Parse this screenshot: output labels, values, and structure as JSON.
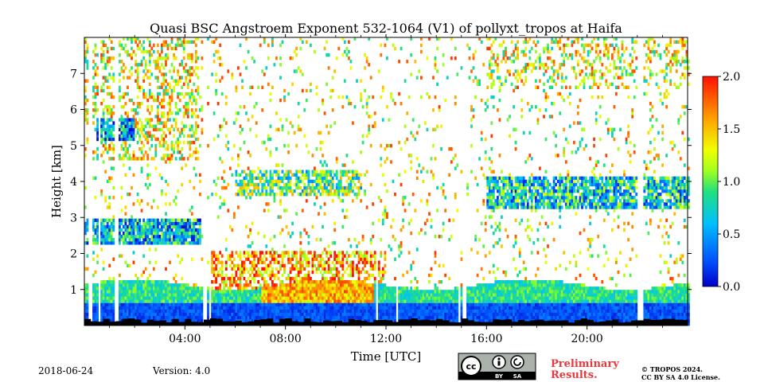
{
  "chart_data": {
    "type": "heatmap",
    "title": "Quasi BSC Angstroem Exponent 532-1064 (V1) of pollyxt_tropos at Haifa",
    "xlabel": "Time [UTC]",
    "ylabel": "Height [km]",
    "xlim_hours": [
      0,
      24
    ],
    "ylim_km": [
      0,
      8
    ],
    "x_ticks": [
      {
        "value": 4,
        "label": "04:00"
      },
      {
        "value": 8,
        "label": "08:00"
      },
      {
        "value": 12,
        "label": "12:00"
      },
      {
        "value": 16,
        "label": "16:00"
      },
      {
        "value": 20,
        "label": "20:00"
      }
    ],
    "y_ticks": [
      {
        "value": 1,
        "label": "1"
      },
      {
        "value": 2,
        "label": "2"
      },
      {
        "value": 3,
        "label": "3"
      },
      {
        "value": 4,
        "label": "4"
      },
      {
        "value": 5,
        "label": "5"
      },
      {
        "value": 6,
        "label": "6"
      },
      {
        "value": 7,
        "label": "7"
      }
    ],
    "colorbar": {
      "min": 0.0,
      "max": 2.0,
      "colormap": "jet",
      "ticks": [
        {
          "value": 0.0,
          "label": "0.0"
        },
        {
          "value": 0.5,
          "label": "0.5"
        },
        {
          "value": 1.0,
          "label": "1.0"
        },
        {
          "value": 1.5,
          "label": "1.5"
        },
        {
          "value": 2.0,
          "label": "2.0"
        }
      ]
    },
    "missing_data_gaps_hours": [
      0.2,
      0.55,
      1.25,
      4.75,
      4.95,
      11.6,
      12.4,
      14.9,
      15.1,
      22.05,
      22.15
    ],
    "layers": [
      {
        "description_units": "km",
        "t_start": 0,
        "t_end": 24,
        "h_min": 0,
        "h_max": 0.6,
        "value": 0.15
      },
      {
        "t_start": 0,
        "t_end": 24,
        "h_min": 0.6,
        "h_max": 1.2,
        "value": 0.8
      }
    ]
  },
  "footer": {
    "date": "2018-06-24",
    "version": "Version: 4.0",
    "preliminary_line1": "Preliminary",
    "preliminary_line2": "Results.",
    "copyright_line1": "© TROPOS 2024.",
    "copyright_line2": "CC BY SA 4.0 License.",
    "cc_by": "BY",
    "cc_sa": "SA"
  }
}
